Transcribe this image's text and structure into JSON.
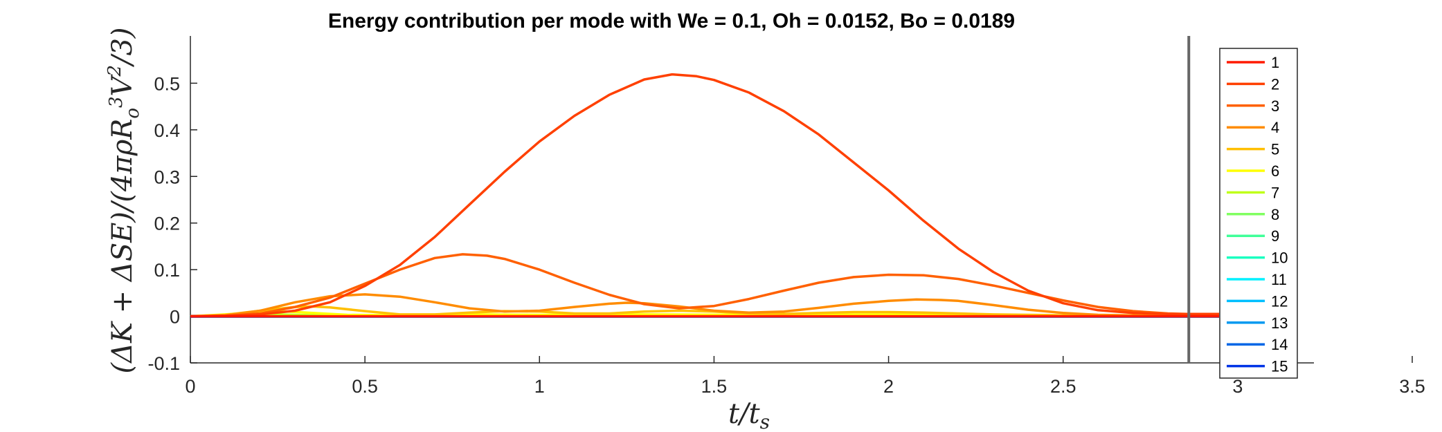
{
  "chart_data": {
    "type": "line",
    "title": "Energy contribution per mode with We = 0.1, Oh = 0.0152, Bo = 0.0189",
    "xlabel": "t/t_s",
    "ylabel": "(ΔK + ΔSE)/(4πρR_o^3V^2/3)",
    "xlim": [
      0,
      3.5
    ],
    "ylim": [
      -0.1,
      0.6
    ],
    "xticks": [
      0,
      0.5,
      1,
      1.5,
      2,
      2.5,
      3,
      3.5
    ],
    "xtick_labels": [
      "0",
      "0.5",
      "1",
      "1.5",
      "2",
      "2.5",
      "3",
      "3.5"
    ],
    "yticks": [
      -0.1,
      0,
      0.1,
      0.2,
      0.3,
      0.4,
      0.5
    ],
    "ytick_labels": [
      "-0.1",
      "0",
      "0.1",
      "0.2",
      "0.3",
      "0.4",
      "0.5"
    ],
    "grid": false,
    "legend_position": "right",
    "vertical_line": {
      "x": 2.86,
      "color": "#666666"
    },
    "series": [
      {
        "name": "1",
        "color": "#ff1a00",
        "x": [
          0,
          3.65
        ],
        "y": [
          0,
          0
        ]
      },
      {
        "name": "2",
        "color": "#ff4000",
        "x": [
          0,
          0.1,
          0.2,
          0.3,
          0.4,
          0.5,
          0.6,
          0.7,
          0.8,
          0.9,
          1.0,
          1.1,
          1.2,
          1.3,
          1.38,
          1.45,
          1.5,
          1.6,
          1.7,
          1.8,
          1.9,
          2.0,
          2.1,
          2.2,
          2.3,
          2.4,
          2.5,
          2.6,
          2.7,
          2.8,
          2.9,
          3.0,
          3.65
        ],
        "y": [
          0,
          0.001,
          0.004,
          0.012,
          0.03,
          0.065,
          0.11,
          0.17,
          0.24,
          0.31,
          0.375,
          0.43,
          0.475,
          0.508,
          0.519,
          0.515,
          0.507,
          0.48,
          0.44,
          0.39,
          0.33,
          0.27,
          0.205,
          0.145,
          0.095,
          0.055,
          0.028,
          0.013,
          0.007,
          0.005,
          0.005,
          0.005,
          0.005
        ]
      },
      {
        "name": "3",
        "color": "#ff6000",
        "x": [
          0,
          0.1,
          0.2,
          0.3,
          0.4,
          0.5,
          0.6,
          0.7,
          0.78,
          0.85,
          0.9,
          1.0,
          1.1,
          1.2,
          1.3,
          1.4,
          1.5,
          1.6,
          1.7,
          1.8,
          1.9,
          2.0,
          2.1,
          2.2,
          2.3,
          2.4,
          2.5,
          2.6,
          2.7,
          2.8,
          2.9,
          3.0,
          3.65
        ],
        "y": [
          0,
          0.001,
          0.006,
          0.02,
          0.04,
          0.07,
          0.1,
          0.125,
          0.133,
          0.13,
          0.123,
          0.1,
          0.072,
          0.046,
          0.026,
          0.017,
          0.022,
          0.037,
          0.055,
          0.072,
          0.084,
          0.089,
          0.088,
          0.08,
          0.066,
          0.05,
          0.034,
          0.02,
          0.011,
          0.006,
          0.004,
          0.003,
          0.003
        ]
      },
      {
        "name": "4",
        "color": "#ff8c00",
        "x": [
          0,
          0.1,
          0.2,
          0.3,
          0.4,
          0.5,
          0.6,
          0.7,
          0.8,
          0.9,
          1.0,
          1.1,
          1.2,
          1.25,
          1.3,
          1.4,
          1.5,
          1.6,
          1.7,
          1.8,
          1.9,
          2.0,
          2.08,
          2.15,
          2.2,
          2.3,
          2.4,
          2.5,
          2.6,
          2.7,
          2.8,
          3.65
        ],
        "y": [
          0,
          0.002,
          0.012,
          0.03,
          0.043,
          0.047,
          0.042,
          0.03,
          0.017,
          0.01,
          0.012,
          0.02,
          0.027,
          0.029,
          0.028,
          0.021,
          0.012,
          0.008,
          0.01,
          0.018,
          0.027,
          0.033,
          0.036,
          0.035,
          0.033,
          0.024,
          0.014,
          0.007,
          0.003,
          0.002,
          0.001,
          0.001
        ]
      },
      {
        "name": "5",
        "color": "#ffbf00",
        "x": [
          0,
          0.1,
          0.2,
          0.3,
          0.35,
          0.4,
          0.5,
          0.6,
          0.7,
          0.8,
          0.9,
          1.0,
          1.1,
          1.2,
          1.3,
          1.4,
          1.5,
          1.6,
          1.7,
          1.8,
          1.9,
          2.0,
          2.1,
          2.2,
          2.3,
          2.4,
          2.5,
          2.6,
          3.65
        ],
        "y": [
          0,
          0.003,
          0.012,
          0.02,
          0.021,
          0.019,
          0.011,
          0.004,
          0.004,
          0.008,
          0.011,
          0.01,
          0.006,
          0.006,
          0.01,
          0.012,
          0.01,
          0.006,
          0.005,
          0.007,
          0.009,
          0.009,
          0.008,
          0.006,
          0.004,
          0.003,
          0.002,
          0.001,
          0.001
        ]
      },
      {
        "name": "6",
        "color": "#ffff00",
        "x": [
          0,
          0.1,
          0.2,
          0.28,
          0.35,
          0.45,
          0.6,
          0.8,
          1.0,
          1.3,
          1.6,
          2.0,
          2.4,
          2.8,
          3.65
        ],
        "y": [
          0,
          0.004,
          0.009,
          0.01,
          0.007,
          0.003,
          0.002,
          0.004,
          0.003,
          0.004,
          0.003,
          0.004,
          0.002,
          0.001,
          0.001
        ]
      },
      {
        "name": "7",
        "color": "#c0ff1a",
        "x": [
          0,
          0.1,
          0.2,
          0.3,
          0.45,
          0.8,
          1.5,
          2.5,
          3.65
        ],
        "y": [
          0,
          0.003,
          0.005,
          0.003,
          0.001,
          0.002,
          0.001,
          0.001,
          0.001
        ]
      },
      {
        "name": "8",
        "color": "#80ff60",
        "x": [
          0,
          0.15,
          0.25,
          0.4,
          3.65
        ],
        "y": [
          0,
          0.002,
          0.002,
          0.001,
          0.001
        ]
      },
      {
        "name": "9",
        "color": "#40ff99",
        "x": [
          0,
          3.65
        ],
        "y": [
          0,
          0
        ]
      },
      {
        "name": "10",
        "color": "#1affc0",
        "x": [
          0,
          3.65
        ],
        "y": [
          0,
          0
        ]
      },
      {
        "name": "11",
        "color": "#00f0ff",
        "x": [
          0,
          3.65
        ],
        "y": [
          0,
          0
        ]
      },
      {
        "name": "12",
        "color": "#00bfff",
        "x": [
          0,
          3.65
        ],
        "y": [
          0,
          0
        ]
      },
      {
        "name": "13",
        "color": "#0099f0",
        "x": [
          0,
          3.65
        ],
        "y": [
          0,
          0
        ]
      },
      {
        "name": "14",
        "color": "#0066e6",
        "x": [
          0,
          3.65
        ],
        "y": [
          0,
          0
        ]
      },
      {
        "name": "15",
        "color": "#0033e6",
        "x": [
          0,
          3.65
        ],
        "y": [
          0,
          0
        ]
      }
    ]
  }
}
